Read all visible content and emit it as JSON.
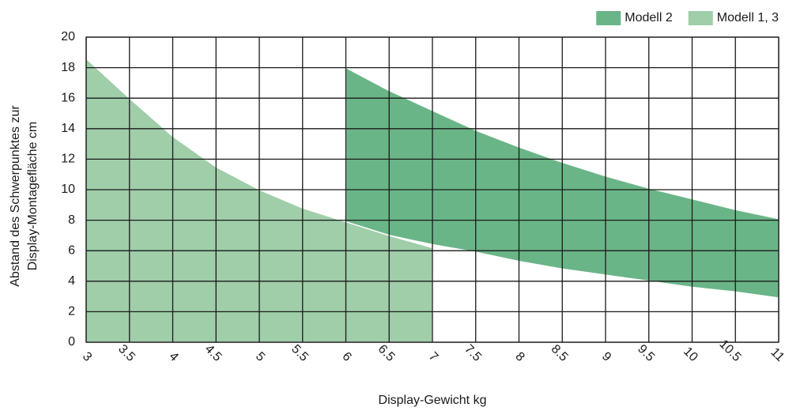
{
  "chart_data": {
    "type": "area",
    "xlabel": "Display-Gewicht kg",
    "ylabel": [
      "Abstand des Schwerpunktes zur",
      "Display-Montagefläche cm"
    ],
    "xlim": [
      3,
      11
    ],
    "xticks": [
      3,
      3.5,
      4,
      4.5,
      5,
      5.5,
      6,
      6.5,
      7,
      7.5,
      8,
      8.5,
      9,
      9.5,
      10,
      10.5,
      11
    ],
    "ylim": [
      0,
      20
    ],
    "yticks": [
      0,
      2,
      4,
      6,
      8,
      10,
      12,
      14,
      16,
      18,
      20
    ],
    "grid": true,
    "legend": "top-right",
    "series": [
      {
        "name": "Modell 2",
        "color": "#6ab587",
        "x": [
          6,
          6.5,
          7,
          7.5,
          8,
          8.5,
          9,
          9.5,
          10,
          10.5,
          11
        ],
        "values": [
          18,
          16.5,
          15.2,
          13.9,
          12.8,
          11.8,
          10.9,
          10.1,
          9.4,
          8.7,
          8.1
        ],
        "lower": [
          7.8,
          7,
          6.4,
          5.9,
          5.3,
          4.8,
          4.4,
          4.0,
          3.6,
          3.3,
          2.9
        ]
      },
      {
        "name": "Modell 1, 3",
        "color": "#9fcea9",
        "x": [
          3,
          3.5,
          4,
          4.5,
          5,
          5.5,
          6,
          6.5,
          7
        ],
        "values": [
          18.6,
          16,
          13.5,
          11.5,
          10,
          8.8,
          7.9,
          7,
          6.2
        ]
      }
    ]
  }
}
